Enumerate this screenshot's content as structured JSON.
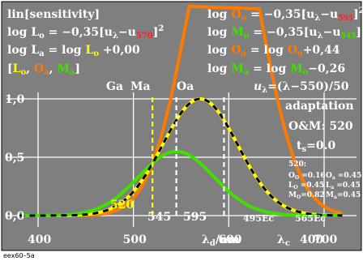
{
  "footer_code": "eex60–5a",
  "colors": {
    "background": "#7f7f7f",
    "border": "#000000",
    "text": "#ffffff",
    "orange": "#ff7a00",
    "yellow": "#ffff00",
    "green": "#40e000",
    "red_sub": "#ff2020",
    "dashed": "#000000"
  },
  "formulas_left": {
    "line1": "lin[sensitivity]",
    "line2_main": "log L",
    "line2_sub": "o",
    "line2_rest": " = −0,35[u",
    "line2_sub2": "λ",
    "line2_rest2": "−u",
    "line2_sub3": "570",
    "line2_end": "]",
    "line2_exp": "2",
    "line3_main": "log L",
    "line3_sub": "a",
    "line3_mid": " = log ",
    "line3_L": "L",
    "line3_Lsub": "o",
    "line3_end": " +0,00",
    "line4_open": "[",
    "line4_L": "L",
    "line4_Lsub": "o",
    "line4_comma1": ", ",
    "line4_O": "O",
    "line4_Osub": "a",
    "line4_comma2": ", ",
    "line4_M": "M",
    "line4_Msub": "a",
    "line4_close": "]"
  },
  "formulas_right": {
    "r1_main": "log ",
    "r1_O": "O",
    "r1_Osub": "o",
    "r1_rest": " = −0,35[u",
    "r1_sub": "λ",
    "r1_rest2": "−u",
    "r1_sub2": "595",
    "r1_end": "]",
    "r1_exp": "2",
    "r2_main": "log ",
    "r2_M": "M",
    "r2_Msub": "o",
    "r2_rest": " = −0,35[u",
    "r2_sub": "λ",
    "r2_rest2": "−u",
    "r2_sub2": "545",
    "r2_end": "]",
    "r2_exp": "2",
    "r3_main": "log ",
    "r3_O": "O",
    "r3_Osub": "a",
    "r3_mid": " = log ",
    "r3_O2": "O",
    "r3_O2sub": "o",
    "r3_end": "+0,44",
    "r4_main": "log ",
    "r4_M": "M",
    "r4_Msub": "a",
    "r4_mid": " = log ",
    "r4_M2": "M",
    "r4_M2sub": "o",
    "r4_end": "−0,26",
    "r5": "u",
    "r5_sub": "λ",
    "r5_rest": "=(λ−550)/50"
  },
  "info_panel": {
    "adaptation": "adaptation",
    "om": "O&M: 520",
    "ts_main": "t",
    "ts_sub": "s",
    "ts_rest": "=0.0",
    "small_header": "520:",
    "small_rows": [
      {
        "left_main": "O",
        "left_sub": "O",
        "left_val": " =0.16",
        "right_main": "O",
        "right_sub": "a",
        "right_val": " =0.45"
      },
      {
        "left_main": "L",
        "left_sub": "O",
        "left_val": " =0.45",
        "right_main": "L",
        "right_sub": "a",
        "right_val": " =0.45"
      },
      {
        "left_main": "M",
        "left_sub": "O",
        "left_val": "=0.82",
        "right_main": "M",
        "right_sub": "a",
        "right_val": "=0.45"
      }
    ]
  },
  "chart_data": {
    "type": "line",
    "xlim": [
      380,
      720
    ],
    "ylim": [
      -0.05,
      1.1
    ],
    "x_ticks": [
      400,
      500,
      600,
      700
    ],
    "x_tick_labels": [
      "400",
      "500",
      "600",
      "700"
    ],
    "x_axis_label": "λ",
    "x_axis_label_sub": "d",
    "x_axis_label_rest": "/nm",
    "x_axis_extra": "λ",
    "x_axis_extra_sub": "c",
    "x_axis_extra_tick": "400",
    "y_ticks": [
      0.0,
      0.5,
      1.0
    ],
    "y_tick_labels": [
      "0,0",
      "0,5",
      "1,0"
    ],
    "grid": true,
    "series": [
      {
        "color": "orange",
        "center": 570,
        "scale": 1.0,
        "style": "solid"
      },
      {
        "color": "orange",
        "center": 595,
        "scale": 2.754,
        "style": "solid"
      },
      {
        "color": "yellow",
        "center": 570,
        "scale": 1.0,
        "style": "solid"
      },
      {
        "color": "green",
        "center": 545,
        "scale": 0.55,
        "style": "solid"
      },
      {
        "color": "dashed",
        "center": 570,
        "scale": 1.0,
        "style": "dashed"
      }
    ],
    "gaussian_coefficient": 0.35,
    "annotations": {
      "ga": "Ga",
      "ma": "Ma",
      "oa": "Oa",
      "v545": "545",
      "v595": "595",
      "v520": "520",
      "ec495": "495Ec",
      "ec565": "565Ec"
    },
    "vlines": {
      "yellow_dashed": 520,
      "white_dashed": [
        545,
        595
      ]
    }
  }
}
